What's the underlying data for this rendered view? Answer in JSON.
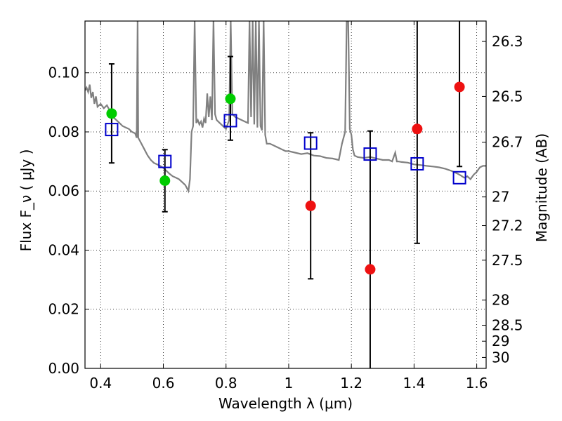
{
  "chart_data": {
    "type": "scatter",
    "xlabel": "Wavelength  λ (μm)",
    "ylabel": "Flux  F_ν  ( μJy )",
    "ylabel_right": "Magnitude (AB)",
    "xlim": [
      0.35,
      1.63
    ],
    "ylim": [
      0.0,
      0.1175
    ],
    "grid": true,
    "x_ticks": [
      0.4,
      0.6,
      0.8,
      1.0,
      1.2,
      1.4,
      1.6
    ],
    "x_tick_labels": [
      "0.4",
      "0.6",
      "0.8",
      "1",
      "1.2",
      "1.4",
      "1.6"
    ],
    "y_ticks": [
      0.0,
      0.02,
      0.04,
      0.06,
      0.08,
      0.1
    ],
    "y_tick_labels": [
      "0.00",
      "0.02",
      "0.04",
      "0.06",
      "0.08",
      "0.10"
    ],
    "right_ticks": [
      {
        "label": "26.3",
        "flux": 0.1106
      },
      {
        "label": "26.5",
        "flux": 0.092
      },
      {
        "label": "26.7",
        "flux": 0.0765
      },
      {
        "label": "27",
        "flux": 0.058
      },
      {
        "label": "27.2",
        "flux": 0.0483
      },
      {
        "label": "27.5",
        "flux": 0.0366
      },
      {
        "label": "28",
        "flux": 0.0231
      },
      {
        "label": "28.5",
        "flux": 0.0146
      },
      {
        "label": "29",
        "flux": 0.0092
      },
      {
        "label": "30",
        "flux": 0.0037
      }
    ],
    "series": [
      {
        "marker": "circle",
        "color": "#00cc00",
        "points": [
          {
            "x": 0.435,
            "y": 0.0862,
            "err_low": 0.0695,
            "err_high": 0.103
          },
          {
            "x": 0.605,
            "y": 0.0635,
            "err_low": 0.053,
            "err_high": 0.074
          },
          {
            "x": 0.814,
            "y": 0.0912,
            "err_low": 0.0772,
            "err_high": 0.1055
          }
        ]
      },
      {
        "marker": "circle",
        "color": "#ee1111",
        "points": [
          {
            "x": 1.07,
            "y": 0.055,
            "err_low": 0.0303,
            "err_high": 0.0797
          },
          {
            "x": 1.26,
            "y": 0.0335,
            "err_low": 0.0,
            "err_high": 0.0803
          },
          {
            "x": 1.41,
            "y": 0.081,
            "err_low": 0.0423,
            "err_high": 0.12
          },
          {
            "x": 1.545,
            "y": 0.0952,
            "err_low": 0.0683,
            "err_high": 0.12
          }
        ]
      },
      {
        "marker": "square",
        "color": "#0000cc",
        "points": [
          {
            "x": 0.435,
            "y": 0.0808
          },
          {
            "x": 0.605,
            "y": 0.07
          },
          {
            "x": 0.814,
            "y": 0.0838
          },
          {
            "x": 1.07,
            "y": 0.0762
          },
          {
            "x": 1.26,
            "y": 0.0725
          },
          {
            "x": 1.41,
            "y": 0.0692
          },
          {
            "x": 1.545,
            "y": 0.0645
          }
        ]
      }
    ],
    "model_spectrum": {
      "color": "#808080",
      "x": [
        0.35,
        0.355,
        0.36,
        0.365,
        0.37,
        0.375,
        0.38,
        0.385,
        0.39,
        0.4,
        0.41,
        0.42,
        0.43,
        0.44,
        0.45,
        0.46,
        0.47,
        0.48,
        0.49,
        0.5,
        0.51,
        0.515,
        0.518,
        0.52,
        0.525,
        0.53,
        0.54,
        0.55,
        0.56,
        0.57,
        0.58,
        0.59,
        0.6,
        0.61,
        0.62,
        0.63,
        0.64,
        0.65,
        0.66,
        0.67,
        0.675,
        0.68,
        0.685,
        0.69,
        0.695,
        0.7,
        0.705,
        0.71,
        0.715,
        0.72,
        0.725,
        0.73,
        0.735,
        0.74,
        0.745,
        0.75,
        0.755,
        0.76,
        0.765,
        0.77,
        0.78,
        0.79,
        0.8,
        0.81,
        0.815,
        0.82,
        0.83,
        0.84,
        0.85,
        0.86,
        0.87,
        0.875,
        0.88,
        0.885,
        0.89,
        0.895,
        0.9,
        0.905,
        0.91,
        0.915,
        0.92,
        0.925,
        0.93,
        0.94,
        0.95,
        0.96,
        0.97,
        0.98,
        0.99,
        1.0,
        1.02,
        1.04,
        1.06,
        1.08,
        1.1,
        1.12,
        1.14,
        1.16,
        1.17,
        1.18,
        1.185,
        1.19,
        1.195,
        1.2,
        1.205,
        1.21,
        1.22,
        1.24,
        1.26,
        1.28,
        1.3,
        1.32,
        1.33,
        1.34,
        1.345,
        1.35,
        1.36,
        1.38,
        1.4,
        1.42,
        1.44,
        1.46,
        1.48,
        1.5,
        1.52,
        1.54,
        1.55,
        1.56,
        1.57,
        1.58,
        1.59,
        1.6,
        1.61,
        1.62,
        1.63
      ],
      "y": [
        0.094,
        0.095,
        0.0935,
        0.096,
        0.0915,
        0.0935,
        0.0895,
        0.092,
        0.0885,
        0.0895,
        0.088,
        0.089,
        0.087,
        0.085,
        0.084,
        0.083,
        0.082,
        0.0815,
        0.081,
        0.08,
        0.0795,
        0.078,
        0.12,
        0.078,
        0.077,
        0.076,
        0.074,
        0.072,
        0.0705,
        0.0695,
        0.069,
        0.0685,
        0.0678,
        0.0668,
        0.0658,
        0.065,
        0.0645,
        0.064,
        0.063,
        0.062,
        0.061,
        0.06,
        0.064,
        0.08,
        0.082,
        0.12,
        0.083,
        0.084,
        0.0825,
        0.0835,
        0.0815,
        0.0845,
        0.083,
        0.093,
        0.085,
        0.092,
        0.084,
        0.12,
        0.086,
        0.084,
        0.083,
        0.082,
        0.081,
        0.084,
        0.12,
        0.086,
        0.085,
        0.0845,
        0.084,
        0.0835,
        0.083,
        0.12,
        0.085,
        0.12,
        0.0825,
        0.12,
        0.0815,
        0.12,
        0.082,
        0.0805,
        0.12,
        0.079,
        0.076,
        0.076,
        0.0755,
        0.075,
        0.0745,
        0.074,
        0.0735,
        0.0735,
        0.073,
        0.0725,
        0.0728,
        0.072,
        0.0718,
        0.0712,
        0.071,
        0.0705,
        0.076,
        0.08,
        0.12,
        0.12,
        0.081,
        0.079,
        0.074,
        0.072,
        0.0715,
        0.0712,
        0.0715,
        0.071,
        0.0705,
        0.0705,
        0.07,
        0.073,
        0.07,
        0.07,
        0.0698,
        0.0696,
        0.069,
        0.0688,
        0.0685,
        0.0683,
        0.068,
        0.0675,
        0.0668,
        0.0658,
        0.0652,
        0.0645,
        0.065,
        0.064,
        0.0655,
        0.0665,
        0.068,
        0.0685,
        0.0685
      ]
    }
  }
}
